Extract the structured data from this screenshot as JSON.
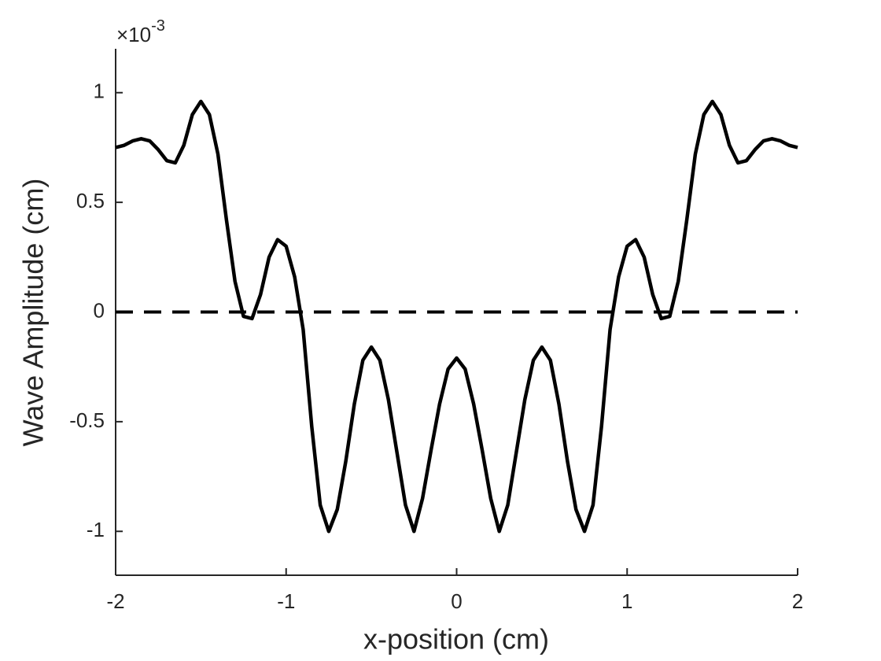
{
  "chart_data": {
    "type": "line",
    "x_label": "x-position (cm)",
    "y_label": "Wave Amplitude (cm)",
    "exponent_base": "×10",
    "exponent": "-3",
    "xlim": [
      -2,
      2
    ],
    "ylim": [
      -1.2,
      1.2
    ],
    "xticks": [
      -2,
      -1,
      0,
      1,
      2
    ],
    "yticks": [
      -1,
      -0.5,
      0,
      0.5,
      1
    ],
    "hline": {
      "value": 0,
      "color": "#000000",
      "dashed": true
    },
    "x": [
      -2,
      -1.95,
      -1.9,
      -1.85,
      -1.8,
      -1.75,
      -1.7,
      -1.65,
      -1.6,
      -1.55,
      -1.5,
      -1.45,
      -1.4,
      -1.35,
      -1.3,
      -1.25,
      -1.2,
      -1.15,
      -1.1,
      -1.05,
      -1,
      -0.95,
      -0.9,
      -0.85,
      -0.8,
      -0.75,
      -0.7,
      -0.65,
      -0.6,
      -0.55,
      -0.5,
      -0.45,
      -0.4,
      -0.35,
      -0.3,
      -0.25,
      -0.2,
      -0.15,
      -0.1,
      -0.05,
      0,
      0.05,
      0.1,
      0.15,
      0.2,
      0.25,
      0.3,
      0.35,
      0.4,
      0.45,
      0.5,
      0.55,
      0.6,
      0.65,
      0.7,
      0.75,
      0.8,
      0.85,
      0.9,
      0.95,
      1,
      1.05,
      1.1,
      1.15,
      1.2,
      1.25,
      1.3,
      1.35,
      1.4,
      1.45,
      1.5,
      1.55,
      1.6,
      1.65,
      1.7,
      1.75,
      1.8,
      1.85,
      1.9,
      1.95,
      2
    ],
    "series": [
      {
        "color": "#000000",
        "values": [
          0.75,
          0.76,
          0.78,
          0.79,
          0.78,
          0.74,
          0.69,
          0.68,
          0.76,
          0.9,
          0.96,
          0.9,
          0.72,
          0.42,
          0.14,
          -0.02,
          -0.03,
          0.08,
          0.25,
          0.33,
          0.3,
          0.16,
          -0.08,
          -0.52,
          -0.88,
          -1.0,
          -0.9,
          -0.68,
          -0.42,
          -0.22,
          -0.16,
          -0.22,
          -0.4,
          -0.64,
          -0.88,
          -1.0,
          -0.85,
          -0.63,
          -0.42,
          -0.26,
          -0.21,
          -0.26,
          -0.42,
          -0.63,
          -0.85,
          -1.0,
          -0.88,
          -0.64,
          -0.4,
          -0.22,
          -0.16,
          -0.22,
          -0.42,
          -0.68,
          -0.9,
          -1.0,
          -0.88,
          -0.52,
          -0.08,
          0.16,
          0.3,
          0.33,
          0.25,
          0.08,
          -0.03,
          -0.02,
          0.14,
          0.42,
          0.72,
          0.9,
          0.96,
          0.9,
          0.76,
          0.68,
          0.69,
          0.74,
          0.78,
          0.79,
          0.78,
          0.76,
          0.75
        ]
      }
    ]
  }
}
